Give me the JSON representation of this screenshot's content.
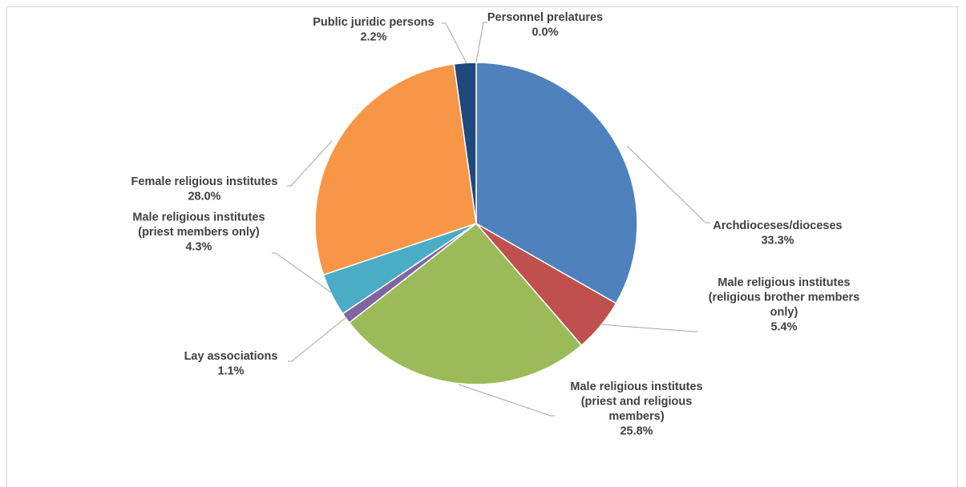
{
  "chart_data": {
    "type": "pie",
    "slices": [
      {
        "name": "Archdioceses/dioceses",
        "label_lines": [
          "Archdioceses/dioceses"
        ],
        "value": 33.3,
        "value_label": "33.3%",
        "color": "#4f81bd"
      },
      {
        "name": "Male religious institutes (religious brother members only)",
        "label_lines": [
          "Male religious institutes",
          "(religious brother members",
          "only)"
        ],
        "value": 5.4,
        "value_label": "5.4%",
        "color": "#c0504d"
      },
      {
        "name": "Male religious institutes (priest and religious members)",
        "label_lines": [
          "Male religious institutes",
          "(priest and religious",
          "members)"
        ],
        "value": 25.8,
        "value_label": "25.8%",
        "color": "#9bbb59"
      },
      {
        "name": "Lay associations",
        "label_lines": [
          "Lay associations"
        ],
        "value": 1.1,
        "value_label": "1.1%",
        "color": "#8064a2"
      },
      {
        "name": "Male religious institutes (priest members only)",
        "label_lines": [
          "Male religious institutes",
          "(priest members only)"
        ],
        "value": 4.3,
        "value_label": "4.3%",
        "color": "#4bacc6"
      },
      {
        "name": "Female religious institutes",
        "label_lines": [
          "Female religious institutes"
        ],
        "value": 28.0,
        "value_label": "28.0%",
        "color": "#f79646"
      },
      {
        "name": "Public juridic persons",
        "label_lines": [
          "Public juridic persons"
        ],
        "value": 2.2,
        "value_label": "2.2%",
        "color": "#1f497d"
      },
      {
        "name": "Personnel prelatures",
        "label_lines": [
          "Personnel prelatures"
        ],
        "value": 0.0,
        "value_label": "0.0%",
        "color": "#4f81bd"
      }
    ],
    "start_angle_deg": 0,
    "direction": "clockwise",
    "legend": "none",
    "label_style": "outside with leader lines"
  }
}
